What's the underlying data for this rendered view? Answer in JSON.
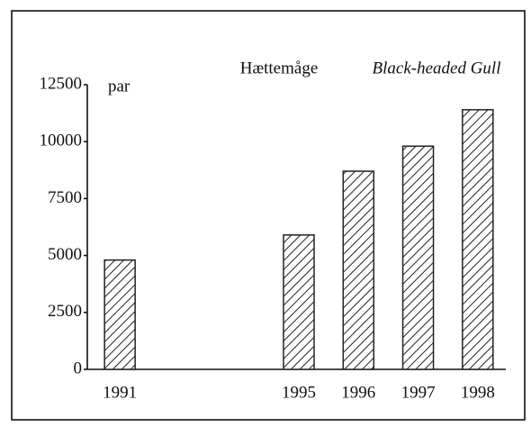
{
  "chart_data": {
    "type": "bar",
    "title": "Hættemåge",
    "subtitle": "Black-headed Gull",
    "y_label": "par",
    "categories": [
      "1991",
      null,
      null,
      "1995",
      "1996",
      "1997",
      "1998"
    ],
    "values": [
      4800,
      null,
      null,
      5900,
      8700,
      9800,
      11400
    ],
    "color": "#222222",
    "ylim": [
      0,
      12500
    ],
    "yticks": [
      0,
      2500,
      5000,
      7500,
      10000,
      12500
    ],
    "grid": false
  }
}
